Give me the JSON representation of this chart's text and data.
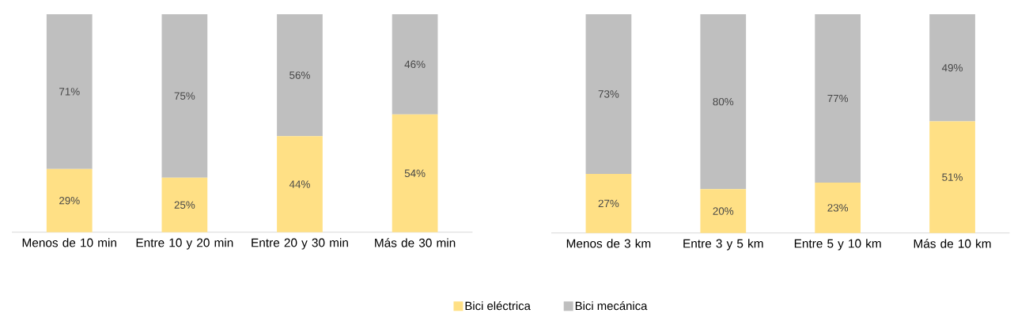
{
  "chart_data": [
    {
      "type": "bar",
      "stacked": true,
      "legend": "bottom",
      "categories": [
        "Menos de 10 min",
        "Entre 10 y 20 min",
        "Entre 20 y 30 min",
        "Más de 30 min"
      ],
      "series": [
        {
          "name": "Bici eléctrica",
          "color": "#ffe085",
          "values": [
            29,
            25,
            44,
            54
          ],
          "value_labels": [
            "29%",
            "25%",
            "44%",
            "54%"
          ]
        },
        {
          "name": "Bici mecánica",
          "color": "#bfbfbf",
          "values": [
            71,
            75,
            56,
            46
          ],
          "value_labels": [
            "71%",
            "75%",
            "56%",
            "46%"
          ]
        }
      ]
    },
    {
      "type": "bar",
      "stacked": true,
      "categories": [
        "Menos de 3 km",
        "Entre 3 y 5 km",
        "Entre 5 y 10 km",
        "Más de 10 km"
      ],
      "series": [
        {
          "color": "#ffe085",
          "values": [
            27,
            20,
            23,
            51
          ],
          "value_labels": [
            "27%",
            "20%",
            "23%",
            "51%"
          ]
        },
        {
          "color": "#bfbfbf",
          "values": [
            73,
            80,
            77,
            49
          ],
          "value_labels": [
            "73%",
            "80%",
            "77%",
            "49%"
          ]
        }
      ]
    }
  ]
}
